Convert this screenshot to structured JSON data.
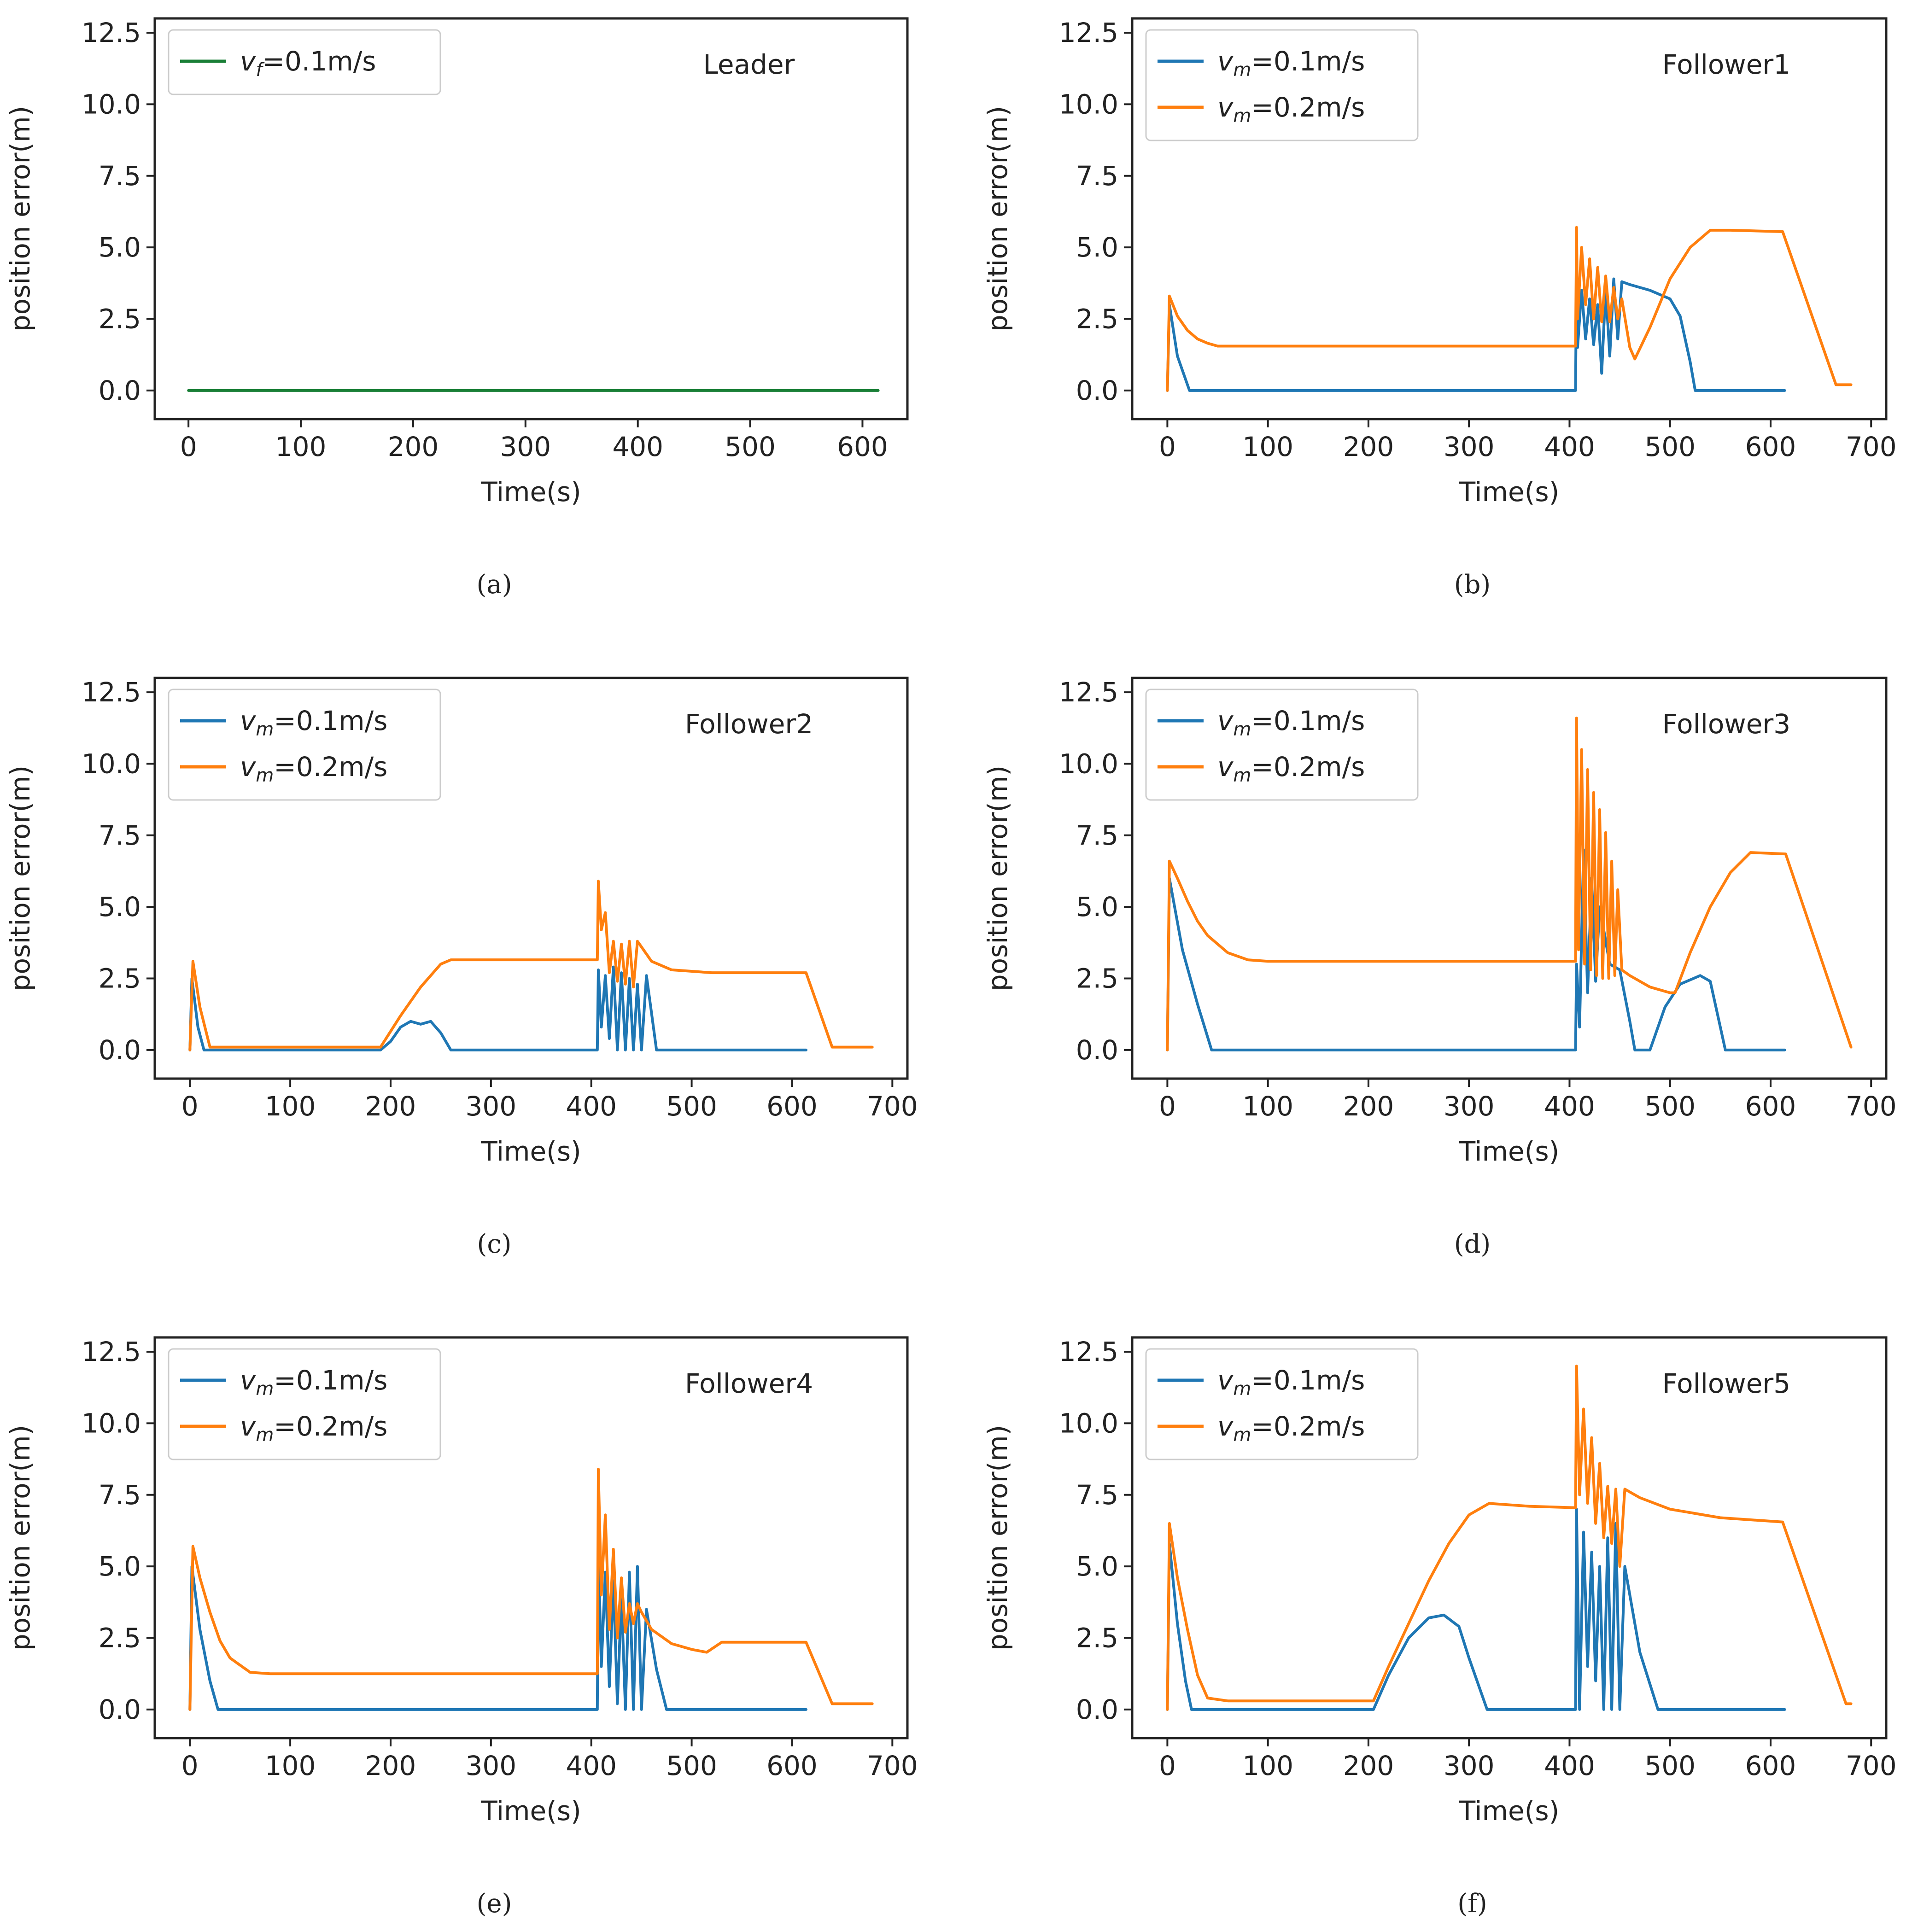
{
  "colors": {
    "leader": "#1a7f37",
    "vm01": "#1f77b4",
    "vm02": "#ff7f0e"
  },
  "chart_data": [
    {
      "type": "line",
      "panel": "a",
      "caption": "(a)",
      "title": "Leader",
      "xlabel": "Time(s)",
      "ylabel": "position error(m)",
      "xlim": [
        -30,
        640
      ],
      "ylim": [
        -1.0,
        13.0
      ],
      "xticks": [
        0,
        100,
        200,
        300,
        400,
        500,
        600
      ],
      "yticks": [
        0.0,
        2.5,
        5.0,
        7.5,
        10.0,
        12.5
      ],
      "ytick_labels": [
        "0.0",
        "2.5",
        "5.0",
        "7.5",
        "10.0",
        "12.5"
      ],
      "legend_position": "upper-left",
      "series": [
        {
          "name": "v_f=0.1m/s",
          "legend_var": "v",
          "legend_sub": "f",
          "legend_rest": "=0.1m/s",
          "color_key": "leader",
          "x": [
            0,
            614
          ],
          "y": [
            0.0,
            0.0
          ]
        }
      ]
    },
    {
      "type": "line",
      "panel": "b",
      "caption": "(b)",
      "title": "Follower1",
      "xlabel": "Time(s)",
      "ylabel": "position error(m)",
      "xlim": [
        -35,
        715
      ],
      "ylim": [
        -1.0,
        13.0
      ],
      "xticks": [
        0,
        100,
        200,
        300,
        400,
        500,
        600,
        700
      ],
      "yticks": [
        0.0,
        2.5,
        5.0,
        7.5,
        10.0,
        12.5
      ],
      "ytick_labels": [
        "0.0",
        "2.5",
        "5.0",
        "7.5",
        "10.0",
        "12.5"
      ],
      "legend_position": "upper-left",
      "series": [
        {
          "name": "v_m=0.1m/s",
          "legend_var": "v",
          "legend_sub": "m",
          "legend_rest": "=0.1m/s",
          "color_key": "vm01",
          "x": [
            0,
            2,
            10,
            22,
            406,
            407,
            408,
            412,
            416,
            420,
            424,
            428,
            432,
            436,
            440,
            444,
            448,
            452,
            460,
            480,
            500,
            510,
            520,
            525,
            614
          ],
          "y": [
            0.0,
            3.0,
            1.2,
            0.0,
            0.0,
            4.5,
            1.5,
            3.5,
            1.8,
            3.2,
            1.6,
            3.0,
            0.6,
            3.6,
            1.2,
            3.9,
            1.8,
            3.8,
            3.7,
            3.5,
            3.2,
            2.6,
            1.0,
            0.0,
            0.0
          ]
        },
        {
          "name": "v_m=0.2m/s",
          "legend_var": "v",
          "legend_sub": "m",
          "legend_rest": "=0.2m/s",
          "color_key": "vm02",
          "x": [
            0,
            2,
            10,
            20,
            30,
            40,
            50,
            406,
            407,
            408,
            412,
            416,
            420,
            424,
            428,
            432,
            436,
            440,
            444,
            448,
            452,
            460,
            465,
            480,
            500,
            520,
            540,
            560,
            612,
            665,
            680
          ],
          "y": [
            0.0,
            3.3,
            2.6,
            2.1,
            1.8,
            1.65,
            1.55,
            1.55,
            5.7,
            2.5,
            5.0,
            3.0,
            4.6,
            2.5,
            4.3,
            2.4,
            4.0,
            2.4,
            3.6,
            2.5,
            3.2,
            1.5,
            1.1,
            2.2,
            3.9,
            5.0,
            5.6,
            5.6,
            5.55,
            0.2,
            0.2
          ]
        }
      ]
    },
    {
      "type": "line",
      "panel": "c",
      "caption": "(c)",
      "title": "Follower2",
      "xlabel": "Time(s)",
      "ylabel": "position error(m)",
      "xlim": [
        -35,
        715
      ],
      "ylim": [
        -1.0,
        13.0
      ],
      "xticks": [
        0,
        100,
        200,
        300,
        400,
        500,
        600,
        700
      ],
      "yticks": [
        0.0,
        2.5,
        5.0,
        7.5,
        10.0,
        12.5
      ],
      "ytick_labels": [
        "0.0",
        "2.5",
        "5.0",
        "7.5",
        "10.0",
        "12.5"
      ],
      "legend_position": "upper-left",
      "series": [
        {
          "name": "v_m=0.1m/s",
          "legend_var": "v",
          "legend_sub": "m",
          "legend_rest": "=0.1m/s",
          "color_key": "vm01",
          "x": [
            0,
            2,
            8,
            14,
            190,
            200,
            210,
            220,
            230,
            240,
            250,
            260,
            406,
            407,
            410,
            414,
            418,
            422,
            426,
            430,
            434,
            438,
            442,
            446,
            450,
            455,
            465,
            614
          ],
          "y": [
            0.0,
            2.5,
            0.8,
            0.0,
            0.0,
            0.3,
            0.8,
            1.0,
            0.9,
            1.0,
            0.6,
            0.0,
            0.0,
            2.8,
            0.8,
            2.6,
            0.4,
            2.9,
            0.0,
            2.7,
            0.0,
            2.5,
            0.0,
            2.3,
            0.0,
            2.6,
            0.0,
            0.0
          ]
        },
        {
          "name": "v_m=0.2m/s",
          "legend_var": "v",
          "legend_sub": "m",
          "legend_rest": "=0.2m/s",
          "color_key": "vm02",
          "x": [
            0,
            3,
            10,
            20,
            190,
            210,
            230,
            250,
            260,
            406,
            407,
            410,
            414,
            418,
            422,
            426,
            430,
            434,
            438,
            442,
            446,
            450,
            460,
            480,
            520,
            614,
            640,
            680
          ],
          "y": [
            0.0,
            3.1,
            1.5,
            0.1,
            0.1,
            1.2,
            2.2,
            3.0,
            3.15,
            3.15,
            5.9,
            4.2,
            4.8,
            2.7,
            3.8,
            2.4,
            3.7,
            2.3,
            3.8,
            2.2,
            3.8,
            3.6,
            3.1,
            2.8,
            2.7,
            2.7,
            0.1,
            0.1
          ]
        }
      ]
    },
    {
      "type": "line",
      "panel": "d",
      "caption": "(d)",
      "title": "Follower3",
      "xlabel": "Time(s)",
      "ylabel": "position error(m)",
      "xlim": [
        -35,
        715
      ],
      "ylim": [
        -1.0,
        13.0
      ],
      "xticks": [
        0,
        100,
        200,
        300,
        400,
        500,
        600,
        700
      ],
      "yticks": [
        0.0,
        2.5,
        5.0,
        7.5,
        10.0,
        12.5
      ],
      "ytick_labels": [
        "0.0",
        "2.5",
        "5.0",
        "7.5",
        "10.0",
        "12.5"
      ],
      "legend_position": "upper-left",
      "series": [
        {
          "name": "v_m=0.1m/s",
          "legend_var": "v",
          "legend_sub": "m",
          "legend_rest": "=0.1m/s",
          "color_key": "vm01",
          "x": [
            0,
            2,
            15,
            30,
            44,
            406,
            407,
            410,
            414,
            418,
            422,
            426,
            430,
            440,
            450,
            460,
            465,
            480,
            495,
            510,
            530,
            540,
            555,
            614
          ],
          "y": [
            0.0,
            6.0,
            3.5,
            1.6,
            0.0,
            0.0,
            3.0,
            0.8,
            7.0,
            2.0,
            6.0,
            2.4,
            5.0,
            3.0,
            2.8,
            1.0,
            0.0,
            0.0,
            1.5,
            2.3,
            2.6,
            2.4,
            0.0,
            0.0
          ]
        },
        {
          "name": "v_m=0.2m/s",
          "legend_var": "v",
          "legend_sub": "m",
          "legend_rest": "=0.2m/s",
          "color_key": "vm02",
          "x": [
            0,
            2,
            10,
            20,
            30,
            40,
            60,
            80,
            100,
            406,
            407,
            409,
            412,
            415,
            418,
            421,
            424,
            427,
            430,
            433,
            436,
            439,
            442,
            445,
            448,
            452,
            460,
            480,
            500,
            505,
            520,
            540,
            560,
            580,
            615,
            680
          ],
          "y": [
            0.0,
            6.6,
            6.0,
            5.2,
            4.5,
            4.0,
            3.4,
            3.15,
            3.1,
            3.1,
            11.6,
            3.5,
            10.5,
            3.0,
            9.8,
            2.8,
            9.0,
            2.6,
            8.4,
            2.5,
            7.6,
            2.5,
            6.6,
            2.6,
            5.6,
            2.8,
            2.6,
            2.2,
            2.0,
            2.0,
            3.4,
            5.0,
            6.2,
            6.9,
            6.85,
            0.1
          ]
        }
      ]
    },
    {
      "type": "line",
      "panel": "e",
      "caption": "(e)",
      "title": "Follower4",
      "xlabel": "Time(s)",
      "ylabel": "position error(m)",
      "xlim": [
        -35,
        715
      ],
      "ylim": [
        -1.0,
        13.0
      ],
      "xticks": [
        0,
        100,
        200,
        300,
        400,
        500,
        600,
        700
      ],
      "yticks": [
        0.0,
        2.5,
        5.0,
        7.5,
        10.0,
        12.5
      ],
      "ytick_labels": [
        "0.0",
        "2.5",
        "5.0",
        "7.5",
        "10.0",
        "12.5"
      ],
      "legend_position": "upper-left",
      "series": [
        {
          "name": "v_m=0.1m/s",
          "legend_var": "v",
          "legend_sub": "m",
          "legend_rest": "=0.1m/s",
          "color_key": "vm01",
          "x": [
            0,
            2,
            10,
            20,
            28,
            406,
            407,
            410,
            414,
            418,
            422,
            426,
            430,
            434,
            438,
            442,
            446,
            450,
            455,
            465,
            475,
            614
          ],
          "y": [
            0.0,
            5.0,
            2.8,
            1.0,
            0.0,
            0.0,
            5.6,
            1.5,
            4.8,
            0.8,
            4.5,
            0.2,
            4.0,
            0.0,
            4.8,
            0.0,
            5.0,
            0.0,
            3.5,
            1.4,
            0.0,
            0.0
          ]
        },
        {
          "name": "v_m=0.2m/s",
          "legend_var": "v",
          "legend_sub": "m",
          "legend_rest": "=0.2m/s",
          "color_key": "vm02",
          "x": [
            0,
            3,
            10,
            20,
            30,
            40,
            60,
            80,
            406,
            407,
            410,
            414,
            418,
            422,
            426,
            430,
            434,
            438,
            442,
            446,
            450,
            460,
            480,
            500,
            515,
            530,
            614,
            640,
            680
          ],
          "y": [
            0.0,
            5.7,
            4.6,
            3.4,
            2.4,
            1.8,
            1.3,
            1.25,
            1.25,
            8.4,
            4.0,
            6.8,
            2.8,
            5.6,
            2.5,
            4.6,
            2.7,
            3.7,
            3.0,
            3.7,
            3.4,
            2.8,
            2.3,
            2.1,
            2.0,
            2.35,
            2.35,
            0.2,
            0.2
          ]
        }
      ]
    },
    {
      "type": "line",
      "panel": "f",
      "caption": "(f)",
      "title": "Follower5",
      "xlabel": "Time(s)",
      "ylabel": "position error(m)",
      "xlim": [
        -35,
        715
      ],
      "ylim": [
        -1.0,
        13.0
      ],
      "xticks": [
        0,
        100,
        200,
        300,
        400,
        500,
        600,
        700
      ],
      "yticks": [
        0.0,
        2.5,
        5.0,
        7.5,
        10.0,
        12.5
      ],
      "ytick_labels": [
        "0.0",
        "2.5",
        "5.0",
        "7.5",
        "10.0",
        "12.5"
      ],
      "legend_position": "upper-left",
      "series": [
        {
          "name": "v_m=0.1m/s",
          "legend_var": "v",
          "legend_sub": "m",
          "legend_rest": "=0.1m/s",
          "color_key": "vm01",
          "x": [
            0,
            2,
            10,
            18,
            24,
            205,
            220,
            240,
            260,
            275,
            290,
            300,
            318,
            406,
            407,
            410,
            414,
            418,
            422,
            426,
            430,
            434,
            438,
            442,
            446,
            450,
            455,
            470,
            488,
            614
          ],
          "y": [
            0.0,
            5.8,
            3.0,
            1.0,
            0.0,
            0.0,
            1.2,
            2.5,
            3.2,
            3.3,
            2.9,
            1.8,
            0.0,
            0.0,
            7.0,
            0.0,
            6.2,
            1.5,
            5.5,
            1.0,
            5.0,
            0.0,
            6.0,
            0.0,
            6.5,
            0.0,
            5.0,
            2.0,
            0.0,
            0.0
          ]
        },
        {
          "name": "v_m=0.2m/s",
          "legend_var": "v",
          "legend_sub": "m",
          "legend_rest": "=0.2m/s",
          "color_key": "vm02",
          "x": [
            0,
            2,
            10,
            20,
            30,
            40,
            60,
            205,
            220,
            240,
            260,
            280,
            300,
            320,
            360,
            406,
            407,
            410,
            414,
            418,
            422,
            426,
            430,
            434,
            438,
            442,
            446,
            450,
            455,
            470,
            500,
            550,
            612,
            675,
            680
          ],
          "y": [
            0.0,
            6.5,
            4.6,
            2.8,
            1.2,
            0.4,
            0.3,
            0.3,
            1.5,
            3.0,
            4.5,
            5.8,
            6.8,
            7.2,
            7.1,
            7.05,
            12.0,
            7.5,
            10.5,
            7.2,
            9.5,
            6.5,
            8.6,
            6.0,
            7.8,
            5.8,
            7.7,
            5.0,
            7.7,
            7.4,
            7.0,
            6.7,
            6.55,
            0.2,
            0.2
          ]
        }
      ]
    }
  ]
}
